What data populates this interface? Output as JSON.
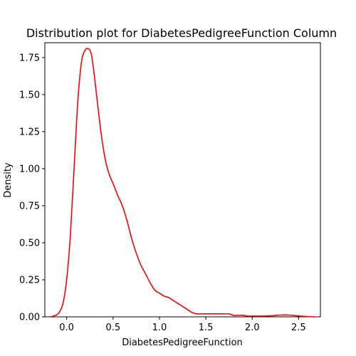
{
  "chart_data": {
    "type": "line",
    "title": "Distribution plot for DiabetesPedigreeFunction Column",
    "xlabel": "DiabetesPedigreeFunction",
    "ylabel": "Density",
    "xlim": [
      -0.235,
      2.735
    ],
    "ylim": [
      0,
      1.85
    ],
    "x_ticks": [
      0.0,
      0.5,
      1.0,
      1.5,
      2.0,
      2.5
    ],
    "x_tick_labels": [
      "0.0",
      "0.5",
      "1.0",
      "1.5",
      "2.0",
      "2.5"
    ],
    "y_ticks": [
      0.0,
      0.25,
      0.5,
      0.75,
      1.0,
      1.25,
      1.5,
      1.75
    ],
    "y_tick_labels": [
      "0.00",
      "0.25",
      "0.50",
      "0.75",
      "1.00",
      "1.25",
      "1.50",
      "1.75"
    ],
    "grid": false,
    "colors": {
      "line": "#ff0000"
    },
    "series": [
      {
        "x": [
          -0.18,
          -0.12,
          -0.08,
          -0.04,
          0.0,
          0.04,
          0.08,
          0.12,
          0.16,
          0.2,
          0.23,
          0.25,
          0.27,
          0.3,
          0.34,
          0.38,
          0.42,
          0.46,
          0.5,
          0.55,
          0.6,
          0.65,
          0.7,
          0.75,
          0.8,
          0.85,
          0.9,
          0.95,
          1.0,
          1.05,
          1.1,
          1.15,
          1.2,
          1.25,
          1.3,
          1.35,
          1.4,
          1.45,
          1.5,
          1.55,
          1.6,
          1.65,
          1.7,
          1.75,
          1.8,
          1.85,
          1.9,
          1.95,
          2.0,
          2.1,
          2.2,
          2.3,
          2.35,
          2.4,
          2.5,
          2.6,
          2.68
        ],
        "y": [
          0.0,
          0.01,
          0.03,
          0.09,
          0.25,
          0.55,
          1.0,
          1.45,
          1.72,
          1.8,
          1.81,
          1.8,
          1.76,
          1.62,
          1.4,
          1.2,
          1.05,
          0.96,
          0.9,
          0.82,
          0.75,
          0.65,
          0.53,
          0.43,
          0.35,
          0.29,
          0.23,
          0.18,
          0.16,
          0.14,
          0.13,
          0.11,
          0.09,
          0.07,
          0.05,
          0.03,
          0.02,
          0.02,
          0.02,
          0.02,
          0.02,
          0.02,
          0.02,
          0.02,
          0.01,
          0.01,
          0.01,
          0.005,
          0.005,
          0.005,
          0.007,
          0.012,
          0.013,
          0.012,
          0.006,
          0.002,
          0.0
        ]
      }
    ]
  }
}
